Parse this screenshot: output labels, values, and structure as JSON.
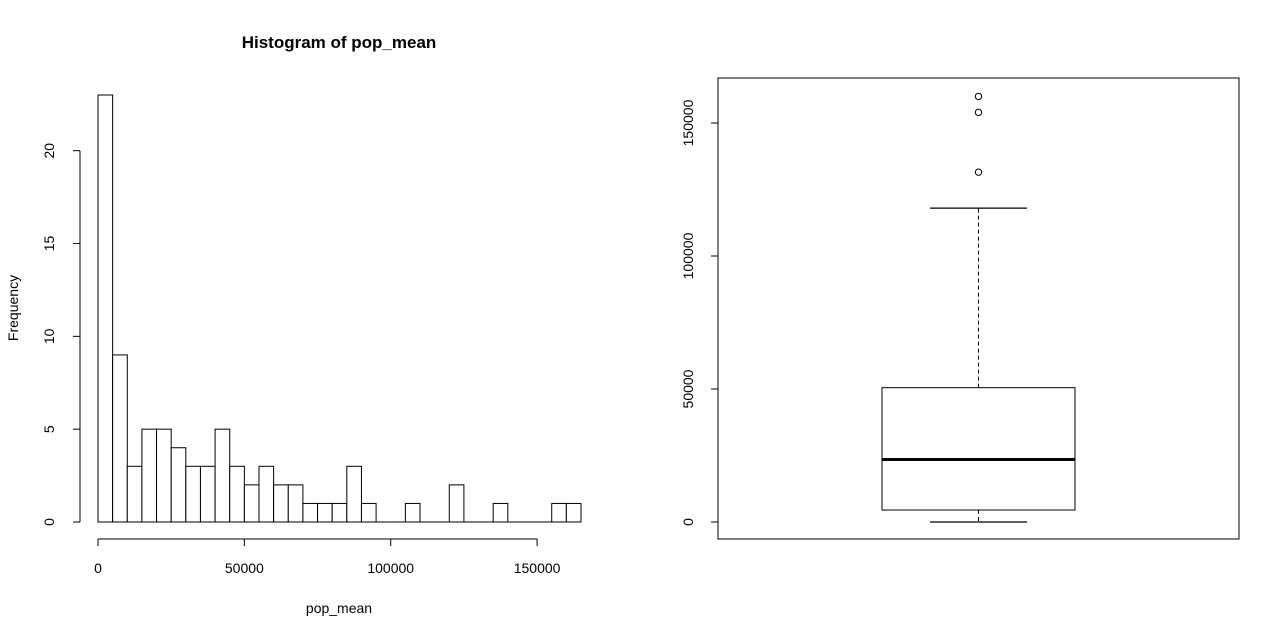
{
  "chart_data": [
    {
      "type": "bar",
      "title": "Histogram of pop_mean",
      "xlabel": "pop_mean",
      "ylabel": "Frequency",
      "bin_width": 5000,
      "bin_start": 0,
      "values": [
        23,
        9,
        3,
        5,
        5,
        4,
        3,
        3,
        5,
        3,
        2,
        3,
        2,
        2,
        1,
        1,
        1,
        3,
        1,
        0,
        0,
        1,
        0,
        0,
        2,
        0,
        0,
        1,
        0,
        0,
        0,
        1,
        1
      ],
      "xlim": [
        0,
        165000
      ],
      "ylim": [
        0,
        23
      ],
      "xticks": [
        0,
        50000,
        100000,
        150000
      ],
      "xtick_labels": [
        "0",
        "50000",
        "100000",
        "150000"
      ],
      "yticks": [
        0,
        5,
        10,
        15,
        20
      ],
      "ytick_labels": [
        "0",
        "5",
        "10",
        "15",
        "20"
      ],
      "grid": false
    },
    {
      "type": "boxplot",
      "title": "",
      "ylim": [
        0,
        160000
      ],
      "yticks": [
        0,
        50000,
        100000,
        150000
      ],
      "ytick_labels": [
        "0",
        "50000",
        "100000",
        "150000"
      ],
      "whisker_low": 0,
      "q1": 4500,
      "median": 23500,
      "q3": 50500,
      "whisker_high": 118000,
      "outliers": [
        131500,
        154000,
        160000
      ],
      "grid": false
    }
  ]
}
